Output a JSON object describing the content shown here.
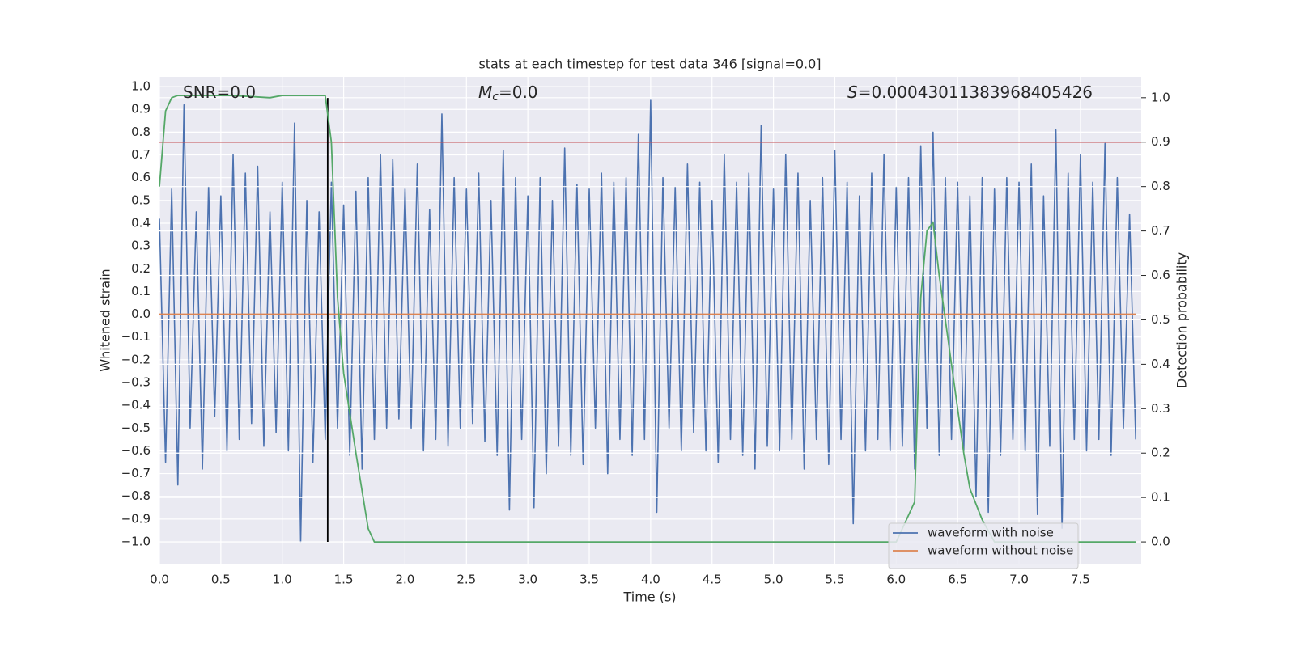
{
  "chart_data": {
    "type": "line",
    "title": "stats at each timestep for test data 346 [signal=0.0]",
    "xlabel": "Time (s)",
    "ylabel": "Whitened strain",
    "y2label": "Detection probability",
    "annotations": [
      {
        "text": "SNR=0.0"
      },
      {
        "math": "M",
        "sub": "c",
        "text": "=0.0"
      },
      {
        "math": "S",
        "text": "=0.00043011383968405426"
      }
    ],
    "xlim": [
      0,
      7.995
    ],
    "ylim": [
      -1.096,
      1.043
    ],
    "y2lim": [
      -0.049,
      1.047
    ],
    "xticks": [
      {
        "value": 0,
        "label": "0.0"
      },
      {
        "value": 0.5,
        "label": "0.5"
      },
      {
        "value": 1,
        "label": "1.0"
      },
      {
        "value": 1.5,
        "label": "1.5"
      },
      {
        "value": 2,
        "label": "2.0"
      },
      {
        "value": 2.5,
        "label": "2.5"
      },
      {
        "value": 3,
        "label": "3.0"
      },
      {
        "value": 3.5,
        "label": "3.5"
      },
      {
        "value": 4,
        "label": "4.0"
      },
      {
        "value": 4.5,
        "label": "4.5"
      },
      {
        "value": 5,
        "label": "5.0"
      },
      {
        "value": 5.5,
        "label": "5.5"
      },
      {
        "value": 6,
        "label": "6.0"
      },
      {
        "value": 6.5,
        "label": "6.5"
      },
      {
        "value": 7,
        "label": "7.0"
      },
      {
        "value": 7.5,
        "label": "7.5"
      }
    ],
    "yticks": [
      {
        "value": -1,
        "label": "−1.0"
      },
      {
        "value": -0.9,
        "label": "−0.9"
      },
      {
        "value": -0.8,
        "label": "−0.8"
      },
      {
        "value": -0.7,
        "label": "−0.7"
      },
      {
        "value": -0.6,
        "label": "−0.6"
      },
      {
        "value": -0.5,
        "label": "−0.5"
      },
      {
        "value": -0.4,
        "label": "−0.4"
      },
      {
        "value": -0.3,
        "label": "−0.3"
      },
      {
        "value": -0.2,
        "label": "−0.2"
      },
      {
        "value": -0.1,
        "label": "−0.1"
      },
      {
        "value": 0,
        "label": "0.0"
      },
      {
        "value": 0.1,
        "label": "0.1"
      },
      {
        "value": 0.2,
        "label": "0.2"
      },
      {
        "value": 0.3,
        "label": "0.3"
      },
      {
        "value": 0.4,
        "label": "0.4"
      },
      {
        "value": 0.5,
        "label": "0.5"
      },
      {
        "value": 0.6,
        "label": "0.6"
      },
      {
        "value": 0.7,
        "label": "0.7"
      },
      {
        "value": 0.8,
        "label": "0.8"
      },
      {
        "value": 0.9,
        "label": "0.9"
      },
      {
        "value": 1,
        "label": "1.0"
      }
    ],
    "y2ticks": [
      {
        "value": 0,
        "label": "0.0"
      },
      {
        "value": 0.1,
        "label": "0.1"
      },
      {
        "value": 0.2,
        "label": "0.2"
      },
      {
        "value": 0.3,
        "label": "0.3"
      },
      {
        "value": 0.4,
        "label": "0.4"
      },
      {
        "value": 0.5,
        "label": "0.5"
      },
      {
        "value": 0.6,
        "label": "0.6"
      },
      {
        "value": 0.7,
        "label": "0.7"
      },
      {
        "value": 0.8,
        "label": "0.8"
      },
      {
        "value": 0.9,
        "label": "0.9"
      },
      {
        "value": 1,
        "label": "1.0"
      }
    ],
    "grid": true,
    "legend": "lower right",
    "series": [
      {
        "name": "waveform with noise",
        "color": "#4c72b0",
        "x": [
          0,
          0.05,
          0.1,
          0.15,
          0.2,
          0.25,
          0.3,
          0.35,
          0.4,
          0.45,
          0.5,
          0.55,
          0.6,
          0.65,
          0.7,
          0.75,
          0.8,
          0.85,
          0.9,
          0.95,
          1,
          1.05,
          1.1,
          1.15,
          1.2,
          1.25,
          1.3,
          1.35,
          1.4,
          1.45,
          1.5,
          1.55,
          1.6,
          1.65,
          1.7,
          1.75,
          1.8,
          1.85,
          1.9,
          1.95,
          2,
          2.05,
          2.1,
          2.15,
          2.2,
          2.25,
          2.3,
          2.35,
          2.4,
          2.45,
          2.5,
          2.55,
          2.6,
          2.65,
          2.7,
          2.75,
          2.8,
          2.85,
          2.9,
          2.95,
          3,
          3.05,
          3.1,
          3.15,
          3.2,
          3.25,
          3.3,
          3.35,
          3.4,
          3.45,
          3.5,
          3.55,
          3.6,
          3.65,
          3.7,
          3.75,
          3.8,
          3.85,
          3.9,
          3.95,
          4,
          4.05,
          4.1,
          4.15,
          4.2,
          4.25,
          4.3,
          4.35,
          4.4,
          4.45,
          4.5,
          4.55,
          4.6,
          4.65,
          4.7,
          4.75,
          4.8,
          4.85,
          4.9,
          4.95,
          5,
          5.05,
          5.1,
          5.15,
          5.2,
          5.25,
          5.3,
          5.35,
          5.4,
          5.45,
          5.5,
          5.55,
          5.6,
          5.65,
          5.7,
          5.75,
          5.8,
          5.85,
          5.9,
          5.95,
          6,
          6.05,
          6.1,
          6.15,
          6.2,
          6.25,
          6.3,
          6.35,
          6.4,
          6.45,
          6.5,
          6.55,
          6.6,
          6.65,
          6.7,
          6.75,
          6.8,
          6.85,
          6.9,
          6.95,
          7,
          7.05,
          7.1,
          7.15,
          7.2,
          7.25,
          7.3,
          7.35,
          7.4,
          7.45,
          7.5,
          7.55,
          7.6,
          7.65,
          7.7,
          7.75,
          7.8,
          7.85,
          7.9,
          7.95
        ],
        "values": [
          0.42,
          -0.65,
          0.55,
          -0.75,
          0.92,
          -0.5,
          0.45,
          -0.68,
          0.56,
          -0.45,
          0.52,
          -0.6,
          0.7,
          -0.55,
          0.62,
          -0.48,
          0.65,
          -0.58,
          0.45,
          -0.52,
          0.58,
          -0.6,
          0.84,
          -1.0,
          0.5,
          -0.65,
          0.45,
          -0.55,
          0.58,
          -0.5,
          0.48,
          -0.62,
          0.54,
          -0.68,
          0.6,
          -0.55,
          0.7,
          -0.5,
          0.68,
          -0.46,
          0.55,
          -0.5,
          0.66,
          -0.6,
          0.46,
          -0.55,
          0.88,
          -0.58,
          0.6,
          -0.5,
          0.55,
          -0.48,
          0.62,
          -0.56,
          0.5,
          -0.62,
          0.72,
          -0.86,
          0.6,
          -0.55,
          0.52,
          -0.85,
          0.6,
          -0.7,
          0.5,
          -0.58,
          0.73,
          -0.62,
          0.57,
          -0.66,
          0.55,
          -0.5,
          0.62,
          -0.7,
          0.58,
          -0.55,
          0.6,
          -0.62,
          0.79,
          -0.55,
          0.94,
          -0.87,
          0.6,
          -0.5,
          0.56,
          -0.6,
          0.66,
          -0.52,
          0.58,
          -0.6,
          0.5,
          -0.65,
          0.7,
          -0.55,
          0.58,
          -0.62,
          0.62,
          -0.68,
          0.83,
          -0.58,
          0.55,
          -0.6,
          0.7,
          -0.55,
          0.62,
          -0.68,
          0.5,
          -0.55,
          0.6,
          -0.66,
          0.72,
          -0.55,
          0.58,
          -0.92,
          0.52,
          -0.6,
          0.62,
          -0.55,
          0.7,
          -0.6,
          0.56,
          -0.58,
          0.6,
          -0.68,
          0.74,
          -0.5,
          0.8,
          -0.62,
          0.6,
          -0.55,
          0.58,
          -0.6,
          0.52,
          -0.8,
          0.6,
          -0.87,
          0.55,
          -0.62,
          0.6,
          -0.55,
          0.58,
          -0.6,
          0.66,
          -0.88,
          0.52,
          -0.58,
          0.81,
          -0.94,
          0.62,
          -0.55,
          0.7,
          -0.6,
          0.58,
          -0.55,
          0.75,
          -0.62,
          0.6,
          -0.5,
          0.44,
          -0.55
        ]
      },
      {
        "name": "waveform without noise",
        "color": "#dd8452",
        "x": [
          0,
          7.95
        ],
        "values": [
          0,
          0
        ]
      },
      {
        "color": "#55a868",
        "axis": "y2",
        "x": [
          0,
          0.05,
          0.1,
          0.15,
          0.3,
          0.6,
          0.9,
          1.0,
          1.2,
          1.35,
          1.4,
          1.45,
          1.5,
          1.6,
          1.7,
          1.75,
          2.0,
          2.3,
          3.0,
          4.0,
          5.0,
          6.0,
          6.15,
          6.2,
          6.25,
          6.3,
          6.35,
          6.45,
          6.55,
          6.6,
          6.7,
          6.8,
          7.0,
          7.5,
          7.95
        ],
        "values": [
          0.8,
          0.97,
          1.0,
          1.005,
          1.005,
          1.005,
          1.0,
          1.005,
          1.005,
          1.005,
          0.9,
          0.55,
          0.38,
          0.2,
          0.03,
          0.0,
          0.0,
          0.0,
          0.0,
          0.0,
          0.0,
          0.0,
          0.09,
          0.55,
          0.7,
          0.72,
          0.6,
          0.4,
          0.2,
          0.12,
          0.05,
          0.0,
          0.0,
          0.0,
          0.0
        ]
      }
    ],
    "hlines": [
      {
        "value": 0.9,
        "axis": "y2",
        "color": "#c44e52"
      }
    ],
    "vlines": [
      {
        "x": 1.37,
        "ymin": -1.0,
        "ymax": 0.95,
        "color": "#000000"
      }
    ]
  }
}
